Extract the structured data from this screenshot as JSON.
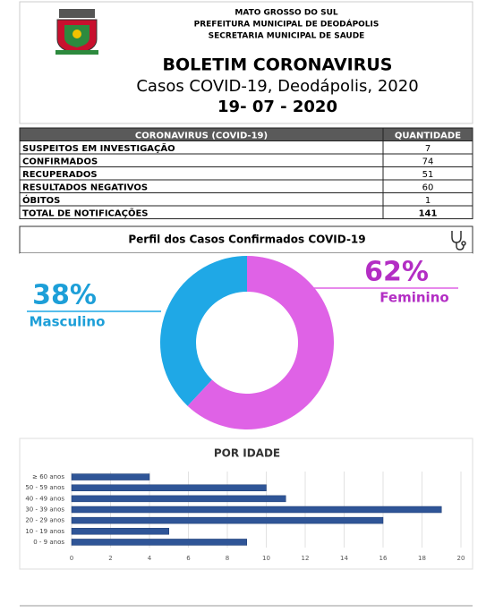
{
  "header": {
    "lines": [
      "MATO GROSSO DO SUL",
      "PREFEITURA MUNICIPAL DE DEODÁPOLIS",
      "SECRETARIA MUNICIPAL DE SAUDE"
    ],
    "title": "BOLETIM CORONAVIRUS",
    "subtitle": "Casos COVID-19, Deodápolis, 2020",
    "date": "19- 07 - 2020"
  },
  "table": {
    "header": [
      "CORONAVIRUS (COVID-19)",
      "QUANTIDADE"
    ],
    "rows": [
      [
        "SUSPEITOS EM INVESTIGAÇÃO",
        7
      ],
      [
        "CONFIRMADOS",
        74
      ],
      [
        "RECUPERADOS",
        51
      ],
      [
        "RESULTADOS NEGATIVOS",
        60
      ],
      [
        "ÓBITOS",
        1
      ],
      [
        "TOTAL DE NOTIFICAÇÕES",
        141
      ]
    ]
  },
  "chart_data": [
    {
      "type": "donut",
      "title": "Perfil dos Casos Confirmados COVID-19",
      "categories": [
        "Masculino",
        "Feminino"
      ],
      "values": [
        38,
        62
      ],
      "value_labels": [
        "38%",
        "62%"
      ],
      "colors": [
        "#1fa8e6",
        "#df62e6"
      ],
      "label_colors": [
        "#1d9fd8",
        "#b32ec4"
      ]
    },
    {
      "type": "bar",
      "orientation": "horizontal",
      "title": "POR IDADE",
      "categories": [
        "≥ 60 anos",
        "50 - 59 anos",
        "40 - 49 anos",
        "30 - 39 anos",
        "20 - 29 anos",
        "10 - 19 anos",
        "0 - 9 anos"
      ],
      "values": [
        4,
        10,
        11,
        19,
        16,
        5,
        9
      ],
      "color": "#2f5597",
      "xlim": [
        0,
        20
      ],
      "xticks": [
        0,
        2,
        4,
        6,
        8,
        10,
        12,
        14,
        16,
        18,
        20
      ],
      "grid": true
    }
  ]
}
